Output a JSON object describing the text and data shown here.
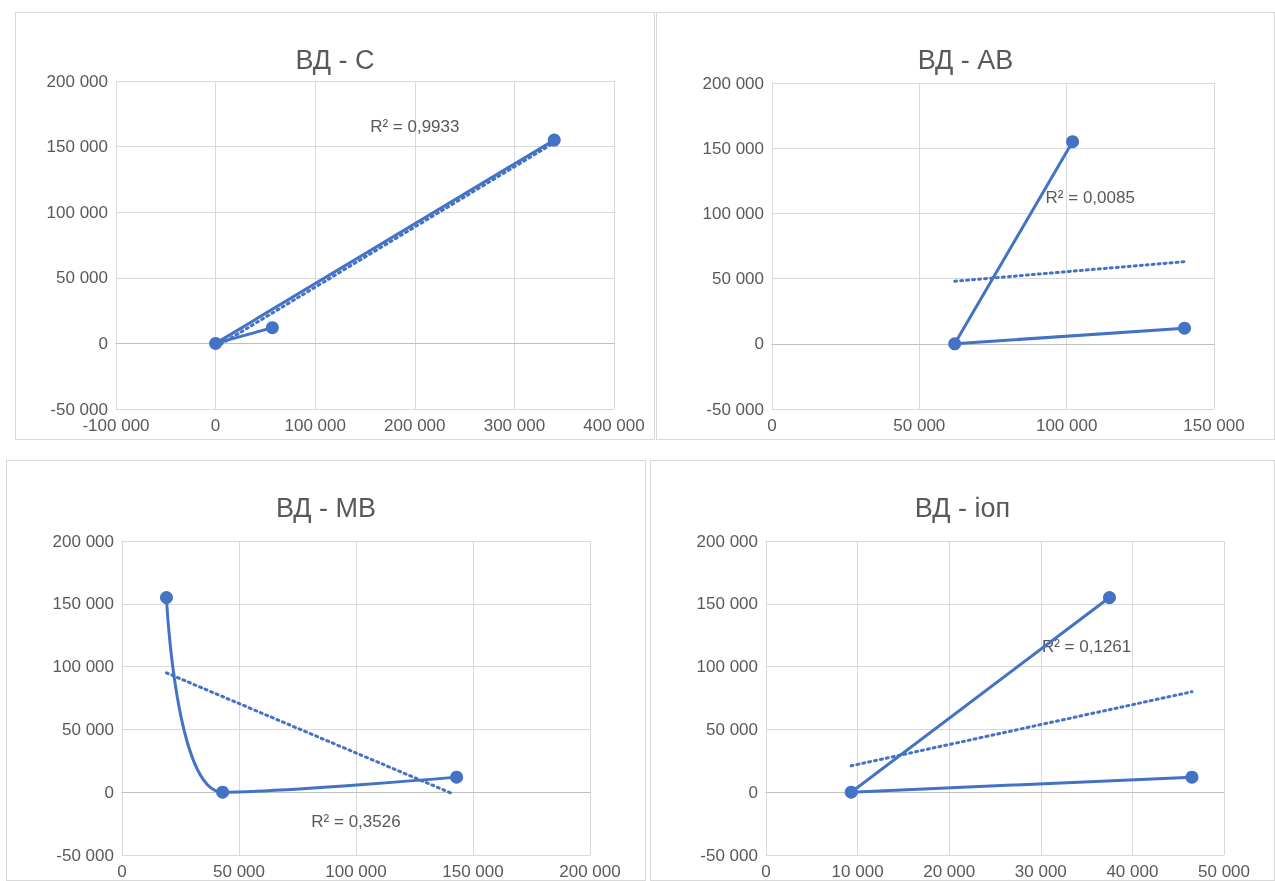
{
  "chart_data": [
    {
      "type": "line",
      "title": "ВД - С",
      "marker": "circle",
      "grid": true,
      "xlim": [
        -100000,
        400000
      ],
      "xticks": [
        {
          "value": -100000,
          "label": "-100 000"
        },
        {
          "value": 0,
          "label": "0"
        },
        {
          "value": 100000,
          "label": "100 000"
        },
        {
          "value": 200000,
          "label": "200 000"
        },
        {
          "value": 300000,
          "label": "300 000"
        },
        {
          "value": 400000,
          "label": "400 000"
        }
      ],
      "ylim": [
        -50000,
        200000
      ],
      "yticks": [
        {
          "value": -50000,
          "label": "-50 000"
        },
        {
          "value": 0,
          "label": "0"
        },
        {
          "value": 50000,
          "label": "50 000"
        },
        {
          "value": 100000,
          "label": "100 000"
        },
        {
          "value": 150000,
          "label": "150 000"
        },
        {
          "value": 200000,
          "label": "200 000"
        }
      ],
      "series": [
        {
          "color": "#4472c4",
          "x": [
            340000,
            0,
            57000
          ],
          "values": [
            155000,
            0,
            12000
          ]
        },
        {
          "color": "#4472c4",
          "marker": "none",
          "line_style": "dotted",
          "x": [
            0,
            340000
          ],
          "values": [
            -3000,
            153000
          ]
        }
      ],
      "annotations": [
        "R² = 0,9933"
      ]
    },
    {
      "type": "line",
      "title": "ВД - АВ",
      "marker": "circle",
      "grid": true,
      "xlim": [
        0,
        150000
      ],
      "xticks": [
        {
          "value": 0,
          "label": "0"
        },
        {
          "value": 50000,
          "label": "50 000"
        },
        {
          "value": 100000,
          "label": "100 000"
        },
        {
          "value": 150000,
          "label": "150 000"
        }
      ],
      "ylim": [
        -50000,
        200000
      ],
      "yticks": [
        {
          "value": -50000,
          "label": "-50 000"
        },
        {
          "value": 0,
          "label": "0"
        },
        {
          "value": 50000,
          "label": "50 000"
        },
        {
          "value": 100000,
          "label": "100 000"
        },
        {
          "value": 150000,
          "label": "150 000"
        },
        {
          "value": 200000,
          "label": "200 000"
        }
      ],
      "series": [
        {
          "color": "#4472c4",
          "x": [
            102000,
            62000,
            140000
          ],
          "values": [
            155000,
            0,
            12000
          ]
        },
        {
          "color": "#4472c4",
          "marker": "none",
          "line_style": "dotted",
          "x": [
            62000,
            140000
          ],
          "values": [
            48000,
            63000
          ]
        }
      ],
      "annotations": [
        "R² = 0,0085"
      ]
    },
    {
      "type": "line",
      "title": "ВД - МВ",
      "marker": "circle",
      "grid": true,
      "xlim": [
        0,
        200000
      ],
      "xticks": [
        {
          "value": 0,
          "label": "0"
        },
        {
          "value": 50000,
          "label": "50 000"
        },
        {
          "value": 100000,
          "label": "100 000"
        },
        {
          "value": 150000,
          "label": "150 000"
        },
        {
          "value": 200000,
          "label": "200 000"
        }
      ],
      "ylim": [
        -50000,
        200000
      ],
      "yticks": [
        {
          "value": -50000,
          "label": "-50 000"
        },
        {
          "value": 0,
          "label": "0"
        },
        {
          "value": 50000,
          "label": "50 000"
        },
        {
          "value": 100000,
          "label": "100 000"
        },
        {
          "value": 150000,
          "label": "150 000"
        },
        {
          "value": 200000,
          "label": "200 000"
        }
      ],
      "series": [
        {
          "color": "#4472c4",
          "x": [
            19000,
            43000,
            143000
          ],
          "values": [
            155000,
            0,
            12000
          ]
        },
        {
          "color": "#4472c4",
          "marker": "none",
          "line_style": "dotted",
          "x": [
            19000,
            141000
          ],
          "values": [
            95000,
            -1000
          ]
        }
      ],
      "annotations": [
        "R² = 0,3526"
      ]
    },
    {
      "type": "line",
      "title": "ВД - іоп",
      "marker": "circle",
      "grid": true,
      "xlim": [
        0,
        50000
      ],
      "xticks": [
        {
          "value": 0,
          "label": "0"
        },
        {
          "value": 10000,
          "label": "10 000"
        },
        {
          "value": 20000,
          "label": "20 000"
        },
        {
          "value": 30000,
          "label": "30 000"
        },
        {
          "value": 40000,
          "label": "40 000"
        },
        {
          "value": 50000,
          "label": "50 000"
        }
      ],
      "ylim": [
        -50000,
        200000
      ],
      "yticks": [
        {
          "value": -50000,
          "label": "-50 000"
        },
        {
          "value": 0,
          "label": "0"
        },
        {
          "value": 50000,
          "label": "50 000"
        },
        {
          "value": 100000,
          "label": "100 000"
        },
        {
          "value": 150000,
          "label": "150 000"
        },
        {
          "value": 200000,
          "label": "200 000"
        }
      ],
      "series": [
        {
          "color": "#4472c4",
          "x": [
            37500,
            9300,
            46500
          ],
          "values": [
            155000,
            0,
            12000
          ]
        },
        {
          "color": "#4472c4",
          "marker": "none",
          "line_style": "dotted",
          "x": [
            9300,
            46500
          ],
          "values": [
            21000,
            80000
          ]
        }
      ],
      "annotations": [
        "R² = 0,1261"
      ]
    }
  ]
}
